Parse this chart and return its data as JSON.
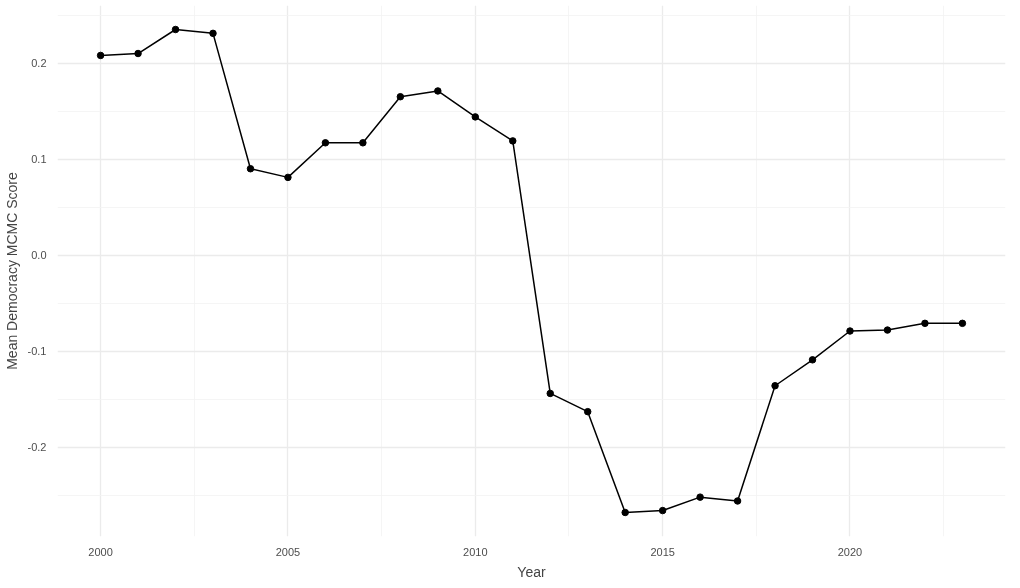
{
  "chart_data": {
    "type": "line",
    "xlabel": "Year",
    "ylabel": "Mean Democracy MCMC Score",
    "x": [
      2000,
      2001,
      2002,
      2003,
      2004,
      2005,
      2006,
      2007,
      2008,
      2009,
      2010,
      2011,
      2012,
      2013,
      2014,
      2015,
      2016,
      2017,
      2018,
      2019,
      2020,
      2021,
      2022,
      2023
    ],
    "series": [
      {
        "color": "#000000",
        "values": [
          0.208,
          0.21,
          0.235,
          0.231,
          0.09,
          0.081,
          0.117,
          0.117,
          0.165,
          0.171,
          0.144,
          0.119,
          -0.144,
          -0.163,
          -0.268,
          -0.266,
          -0.252,
          -0.256,
          -0.136,
          -0.109,
          -0.079,
          -0.078,
          -0.071,
          -0.071
        ]
      }
    ],
    "xlim": [
      1998.85,
      2024.15
    ],
    "ylim": [
      -0.293,
      0.26
    ],
    "xticks": [
      2000,
      2005,
      2010,
      2015,
      2020
    ],
    "yticks": [
      {
        "value": -0.2,
        "label": "-0.2"
      },
      {
        "value": -0.1,
        "label": "-0.1"
      },
      {
        "value": 0,
        "label": "0.0"
      },
      {
        "value": 0.1,
        "label": "0.1"
      },
      {
        "value": 0.2,
        "label": "0.2"
      }
    ],
    "grid": true,
    "marker": "circle",
    "line_style": "solid"
  }
}
